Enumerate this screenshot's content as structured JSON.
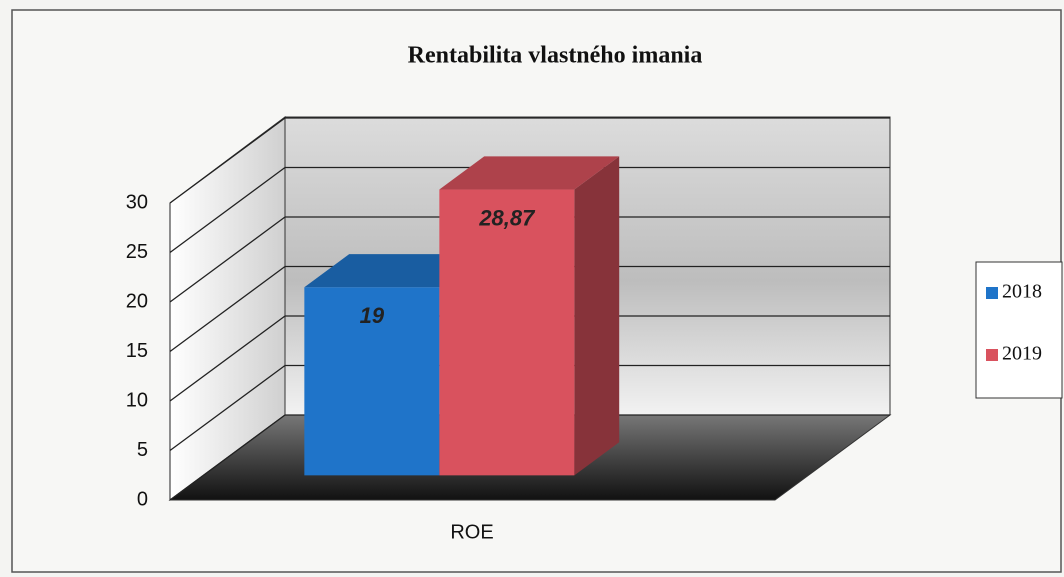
{
  "chart_data": {
    "type": "bar",
    "title": "Rentabilita vlastného imania",
    "categories": [
      "ROE"
    ],
    "series": [
      {
        "name": "2018",
        "color": "#1f74c9",
        "values": [
          19
        ],
        "value_labels": [
          "19"
        ]
      },
      {
        "name": "2019",
        "color": "#d9525e",
        "values": [
          28.87
        ],
        "value_labels": [
          "28,87"
        ]
      }
    ],
    "ylim": [
      0,
      30
    ],
    "yticks": [
      0,
      5,
      10,
      15,
      20,
      25,
      30
    ],
    "grid": true,
    "legend": "right"
  }
}
